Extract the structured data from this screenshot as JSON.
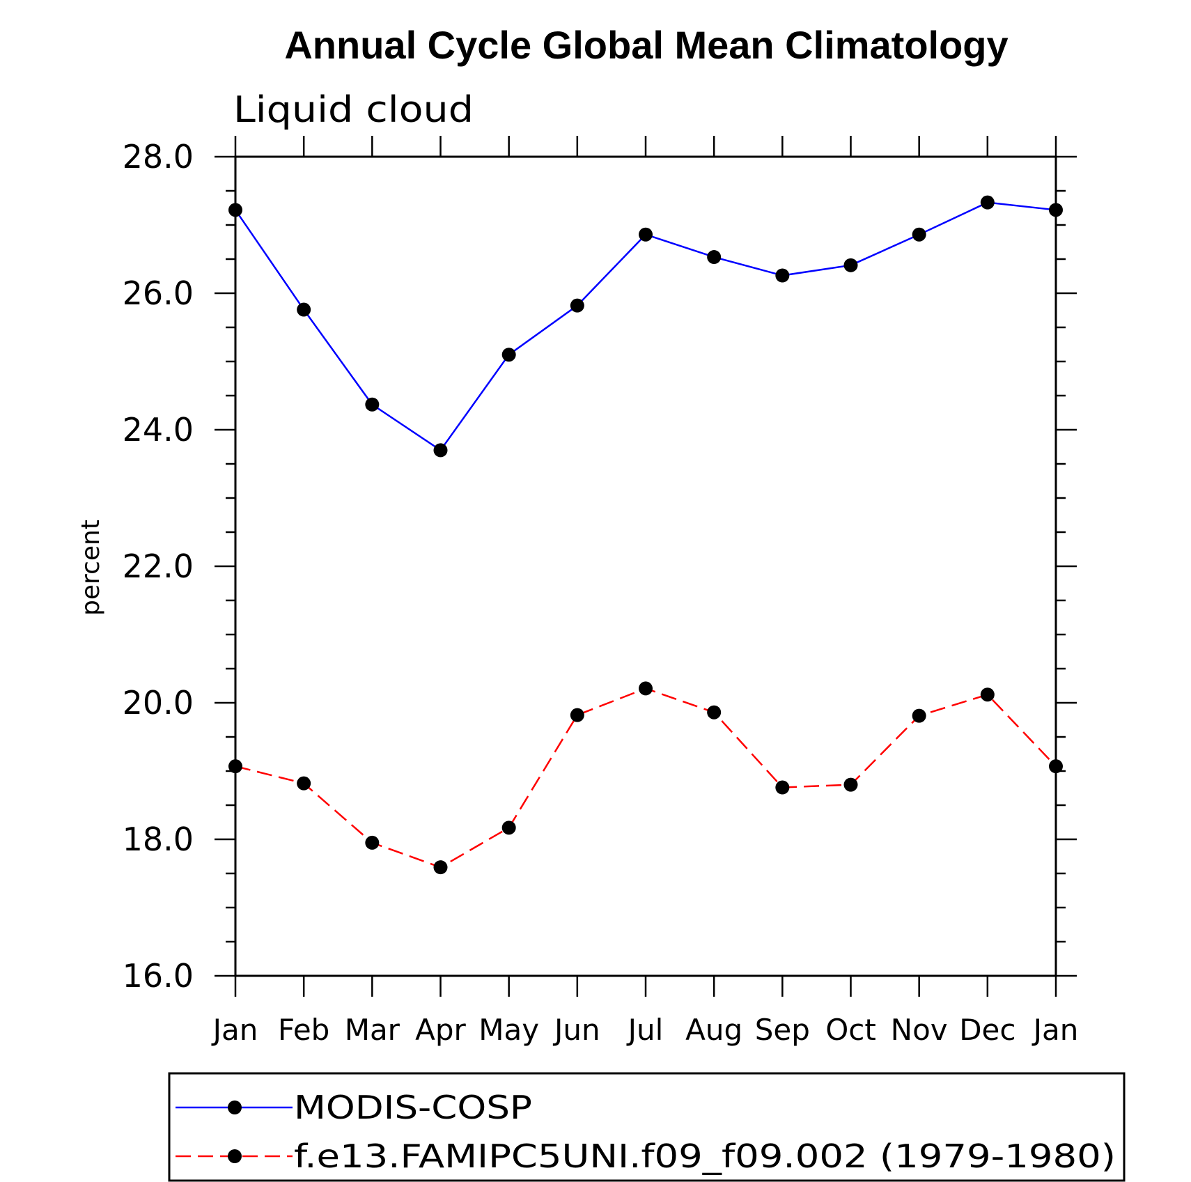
{
  "chart_data": {
    "type": "line",
    "title": "Annual Cycle Global Mean Climatology",
    "subtitle": "Liquid cloud",
    "xlabel": "",
    "ylabel": "percent",
    "categories": [
      "Jan",
      "Feb",
      "Mar",
      "Apr",
      "May",
      "Jun",
      "Jul",
      "Aug",
      "Sep",
      "Oct",
      "Nov",
      "Dec",
      "Jan"
    ],
    "ylim": [
      16.0,
      28.0
    ],
    "y_major_ticks": [
      "16.0",
      "18.0",
      "20.0",
      "22.0",
      "24.0",
      "26.0",
      "28.0"
    ],
    "y_minor_step": 0.5,
    "grid": false,
    "legend_position": "bottom",
    "series": [
      {
        "name": "MODIS-COSP",
        "color": "#0000ff",
        "dash": "solid",
        "marker": "filled-circle",
        "values": [
          27.22,
          25.76,
          24.37,
          23.7,
          25.1,
          25.82,
          26.86,
          26.53,
          26.26,
          26.41,
          26.86,
          27.33,
          27.22
        ]
      },
      {
        "name": "f.e13.FAMIPC5UNI.f09_f09.002 (1979-1980)",
        "color": "#ff0000",
        "dash": "dashed",
        "marker": "filled-circle",
        "values": [
          19.07,
          18.82,
          17.95,
          17.59,
          18.17,
          19.82,
          20.21,
          19.86,
          18.76,
          18.8,
          19.81,
          20.12,
          19.07
        ]
      }
    ]
  }
}
